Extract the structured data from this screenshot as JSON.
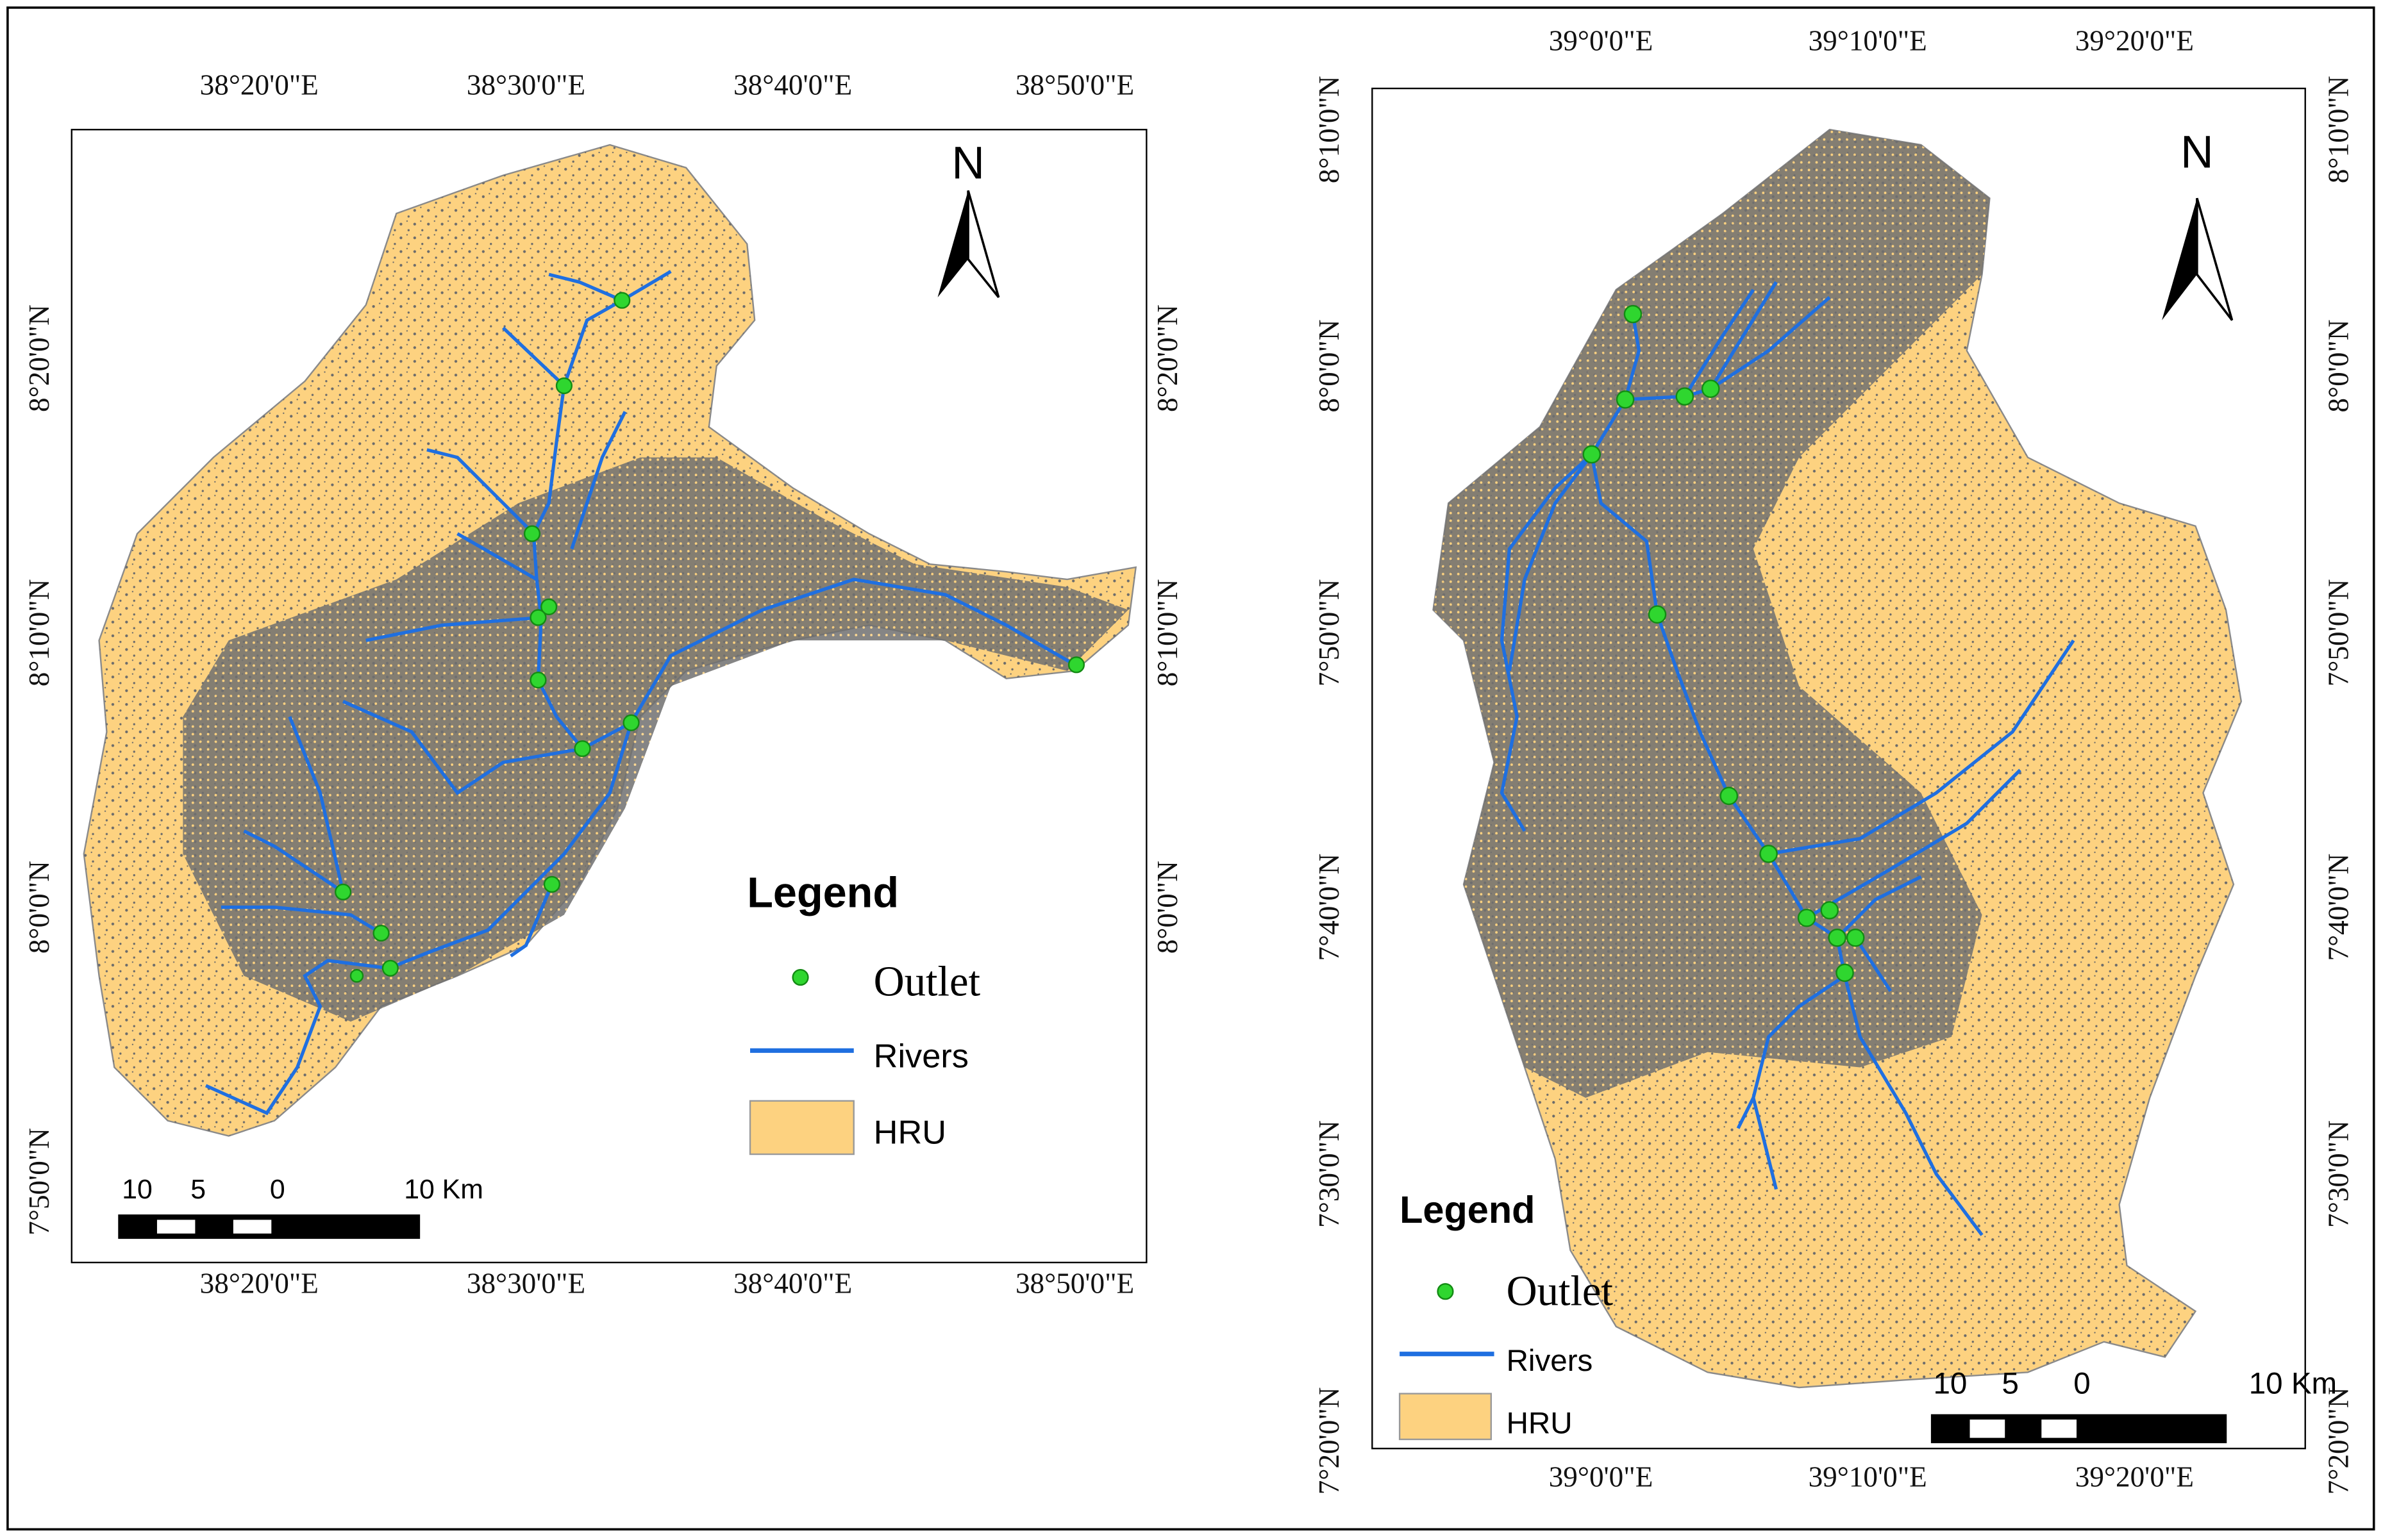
{
  "maps": [
    {
      "top_labels": [
        "38°20'0\"E",
        "38°30'0\"E",
        "38°40'0\"E",
        "38°50'0\"E"
      ],
      "bottom_labels": [
        "38°20'0\"E",
        "38°30'0\"E",
        "38°40'0\"E",
        "38°50'0\"E"
      ],
      "left_labels": [
        "8°20'0\"N",
        "8°10'0\"N",
        "8°0'0\"N",
        "7°50'0\"N"
      ],
      "right_labels": [
        "8°20'0\"N",
        "8°10'0\"N",
        "8°0'0\"N"
      ],
      "north": "N",
      "legend": {
        "title": "Legend",
        "items": [
          "Outlet",
          "Rivers",
          "HRU"
        ]
      },
      "scale_labels": [
        "10",
        "5",
        "0",
        "10 Km"
      ]
    },
    {
      "top_labels": [
        "39°0'0\"E",
        "39°10'0\"E",
        "39°20'0\"E"
      ],
      "bottom_labels": [
        "39°0'0\"E",
        "39°10'0\"E",
        "39°20'0\"E"
      ],
      "left_labels": [
        "8°10'0\"N",
        "8°0'0\"N",
        "7°50'0\"N",
        "7°40'0\"N",
        "7°30'0\"N",
        "7°20'0\"N"
      ],
      "right_labels": [
        "8°10'0\"N",
        "8°0'0\"N",
        "7°50'0\"N",
        "7°40'0\"N",
        "7°30'0\"N",
        "7°20'0\"N"
      ],
      "north": "N",
      "legend": {
        "title": "Legend",
        "items": [
          "Outlet",
          "Rivers",
          "HRU"
        ]
      },
      "scale_labels": [
        "10",
        "5",
        "0",
        "10 Km"
      ]
    }
  ]
}
